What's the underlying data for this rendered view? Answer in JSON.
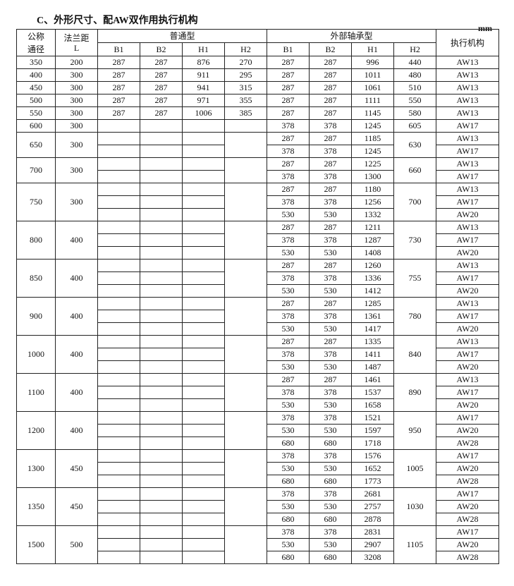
{
  "title": "C、外形尺寸、配AW双作用执行机构",
  "unit": "mm",
  "headers": {
    "dn": "公称通径",
    "dn_line1": "公称",
    "dn_line2": "通径",
    "L_line1": "法兰距",
    "L_line2": "L",
    "normal": "普通型",
    "external": "外部轴承型",
    "actuator": "执行机构",
    "sub": [
      "B1",
      "B2",
      "H1",
      "H2"
    ]
  },
  "groups": [
    {
      "dn": "350",
      "L": "200",
      "normal": [
        "287",
        "287",
        "876",
        "270"
      ],
      "ext_h2": "440",
      "rows": [
        [
          "287",
          "287",
          "996",
          "AW13"
        ]
      ]
    },
    {
      "dn": "400",
      "L": "300",
      "normal": [
        "287",
        "287",
        "911",
        "295"
      ],
      "ext_h2": "480",
      "rows": [
        [
          "287",
          "287",
          "1011",
          "AW13"
        ]
      ]
    },
    {
      "dn": "450",
      "L": "300",
      "normal": [
        "287",
        "287",
        "941",
        "315"
      ],
      "ext_h2": "510",
      "rows": [
        [
          "287",
          "287",
          "1061",
          "AW13"
        ]
      ]
    },
    {
      "dn": "500",
      "L": "300",
      "normal": [
        "287",
        "287",
        "971",
        "355"
      ],
      "ext_h2": "550",
      "rows": [
        [
          "287",
          "287",
          "1111",
          "AW13"
        ]
      ]
    },
    {
      "dn": "550",
      "L": "300",
      "normal": [
        "287",
        "287",
        "1006",
        "385"
      ],
      "ext_h2": "580",
      "rows": [
        [
          "287",
          "287",
          "1145",
          "AW13"
        ]
      ]
    },
    {
      "dn": "600",
      "L": "300",
      "normal": null,
      "ext_h2": "605",
      "rows": [
        [
          "378",
          "378",
          "1245",
          "AW17"
        ]
      ]
    },
    {
      "dn": "650",
      "L": "300",
      "normal": null,
      "ext_h2": "630",
      "rows": [
        [
          "287",
          "287",
          "1185",
          "AW13"
        ],
        [
          "378",
          "378",
          "1245",
          "AW17"
        ]
      ]
    },
    {
      "dn": "700",
      "L": "300",
      "normal": null,
      "ext_h2": "660",
      "rows": [
        [
          "287",
          "287",
          "1225",
          "AW13"
        ],
        [
          "378",
          "378",
          "1300",
          "AW17"
        ]
      ]
    },
    {
      "dn": "750",
      "L": "300",
      "normal": null,
      "ext_h2": "700",
      "rows": [
        [
          "287",
          "287",
          "1180",
          "AW13"
        ],
        [
          "378",
          "378",
          "1256",
          "AW17"
        ],
        [
          "530",
          "530",
          "1332",
          "AW20"
        ]
      ]
    },
    {
      "dn": "800",
      "L": "400",
      "normal": null,
      "ext_h2": "730",
      "rows": [
        [
          "287",
          "287",
          "1211",
          "AW13"
        ],
        [
          "378",
          "378",
          "1287",
          "AW17"
        ],
        [
          "530",
          "530",
          "1408",
          "AW20"
        ]
      ]
    },
    {
      "dn": "850",
      "L": "400",
      "normal": null,
      "ext_h2": "755",
      "rows": [
        [
          "287",
          "287",
          "1260",
          "AW13"
        ],
        [
          "378",
          "378",
          "1336",
          "AW17"
        ],
        [
          "530",
          "530",
          "1412",
          "AW20"
        ]
      ]
    },
    {
      "dn": "900",
      "L": "400",
      "normal": null,
      "ext_h2": "780",
      "rows": [
        [
          "287",
          "287",
          "1285",
          "AW13"
        ],
        [
          "378",
          "378",
          "1361",
          "AW17"
        ],
        [
          "530",
          "530",
          "1417",
          "AW20"
        ]
      ]
    },
    {
      "dn": "1000",
      "L": "400",
      "normal": null,
      "ext_h2": "840",
      "rows": [
        [
          "287",
          "287",
          "1335",
          "AW13"
        ],
        [
          "378",
          "378",
          "1411",
          "AW17"
        ],
        [
          "530",
          "530",
          "1487",
          "AW20"
        ]
      ]
    },
    {
      "dn": "1100",
      "L": "400",
      "normal": null,
      "ext_h2": "890",
      "rows": [
        [
          "287",
          "287",
          "1461",
          "AW13"
        ],
        [
          "378",
          "378",
          "1537",
          "AW17"
        ],
        [
          "530",
          "530",
          "1658",
          "AW20"
        ]
      ]
    },
    {
      "dn": "1200",
      "L": "400",
      "normal": null,
      "ext_h2": "950",
      "rows": [
        [
          "378",
          "378",
          "1521",
          "AW17"
        ],
        [
          "530",
          "530",
          "1597",
          "AW20"
        ],
        [
          "680",
          "680",
          "1718",
          "AW28"
        ]
      ]
    },
    {
      "dn": "1300",
      "L": "450",
      "normal": null,
      "ext_h2": "1005",
      "rows": [
        [
          "378",
          "378",
          "1576",
          "AW17"
        ],
        [
          "530",
          "530",
          "1652",
          "AW20"
        ],
        [
          "680",
          "680",
          "1773",
          "AW28"
        ]
      ]
    },
    {
      "dn": "1350",
      "L": "450",
      "normal": null,
      "ext_h2": "1030",
      "rows": [
        [
          "378",
          "378",
          "2681",
          "AW17"
        ],
        [
          "530",
          "530",
          "2757",
          "AW20"
        ],
        [
          "680",
          "680",
          "2878",
          "AW28"
        ]
      ]
    },
    {
      "dn": "1500",
      "L": "500",
      "normal": null,
      "ext_h2": "1105",
      "rows": [
        [
          "378",
          "378",
          "2831",
          "AW17"
        ],
        [
          "530",
          "530",
          "2907",
          "AW20"
        ],
        [
          "680",
          "680",
          "3208",
          "AW28"
        ]
      ]
    }
  ]
}
